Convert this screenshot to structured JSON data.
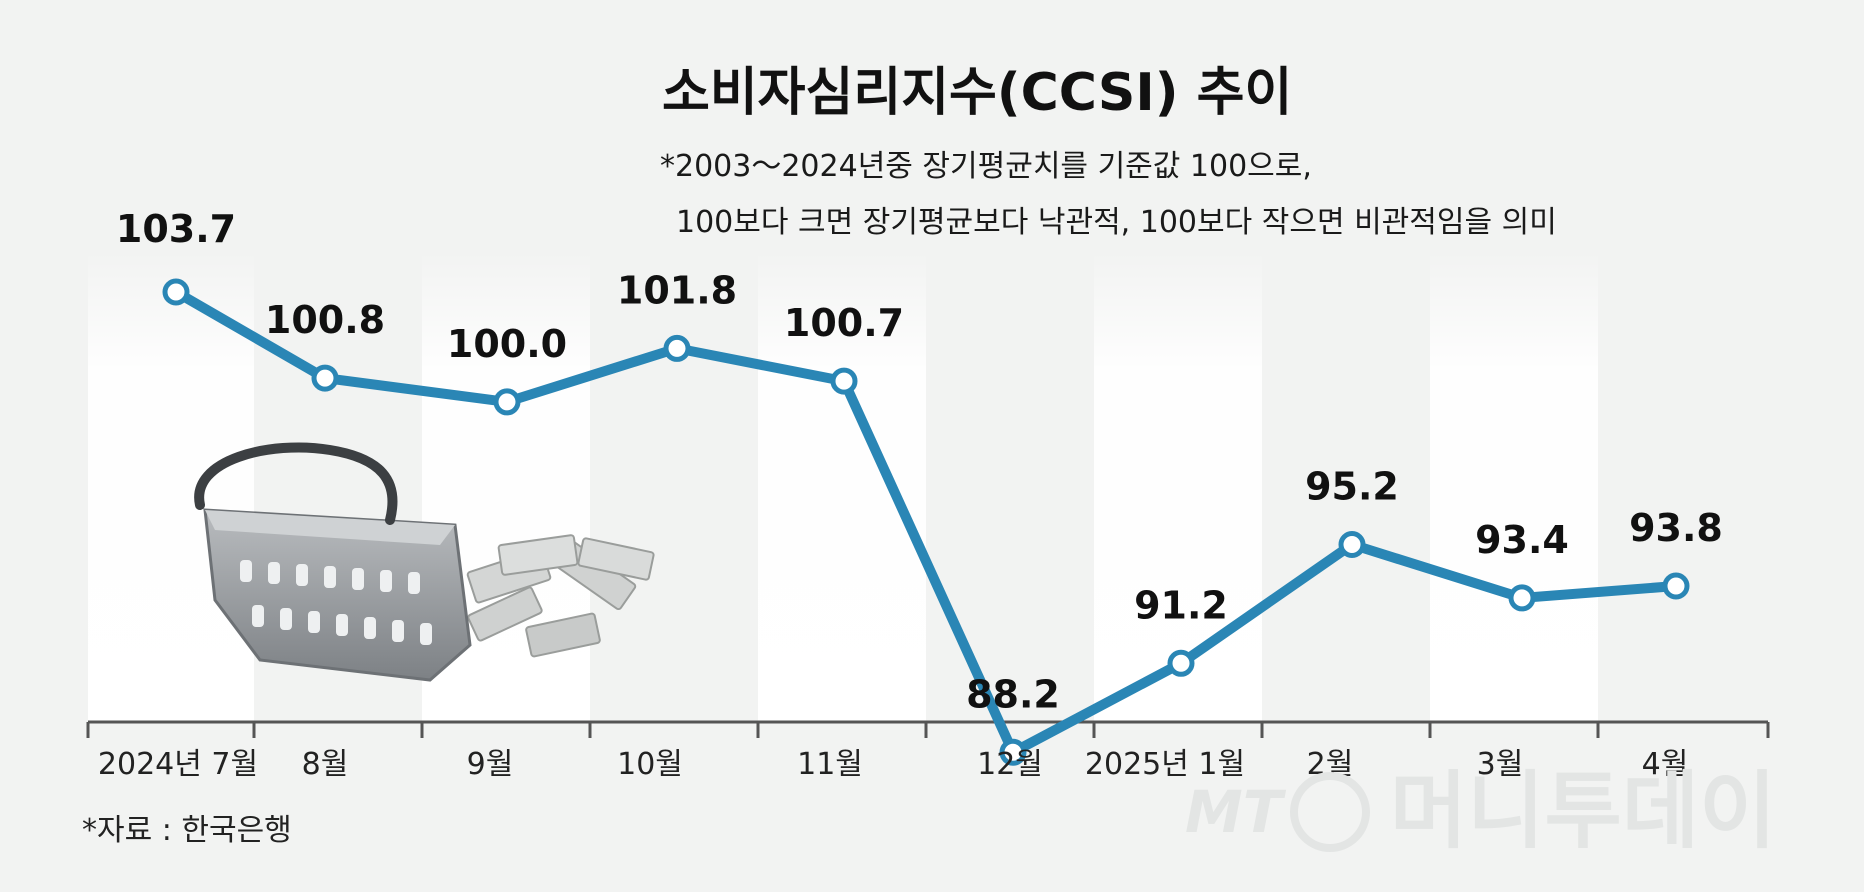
{
  "title": "소비자심리지수(CCSI) 추이",
  "note": [
    "*2003～2024년중 장기평균치를 기준값 100으로,",
    "100보다 크면 장기평균보다 낙관적, 100보다 작으면 비관적임을 의미"
  ],
  "source": "*자료 : 한국은행",
  "watermark": {
    "logo": "MT",
    "text": "머니투데이"
  },
  "colors": {
    "line": "#2a86b5",
    "background": "#f2f3f2",
    "marker_fill": "#ffffff"
  },
  "chart_data": {
    "type": "line",
    "title": "소비자심리지수(CCSI) 추이",
    "categories": [
      "2024년 7월",
      "8월",
      "9월",
      "10월",
      "11월",
      "12월",
      "2025년 1월",
      "2월",
      "3월",
      "4월"
    ],
    "values": [
      103.7,
      100.8,
      100.0,
      101.8,
      100.7,
      88.2,
      91.2,
      95.2,
      93.4,
      93.8
    ],
    "value_labels": [
      "103.7",
      "100.8",
      "100.0",
      "101.8",
      "100.7",
      "88.2",
      "91.2",
      "95.2",
      "93.4",
      "93.8"
    ],
    "xlabel": "",
    "ylabel": "",
    "grid": false,
    "legend": "none"
  }
}
